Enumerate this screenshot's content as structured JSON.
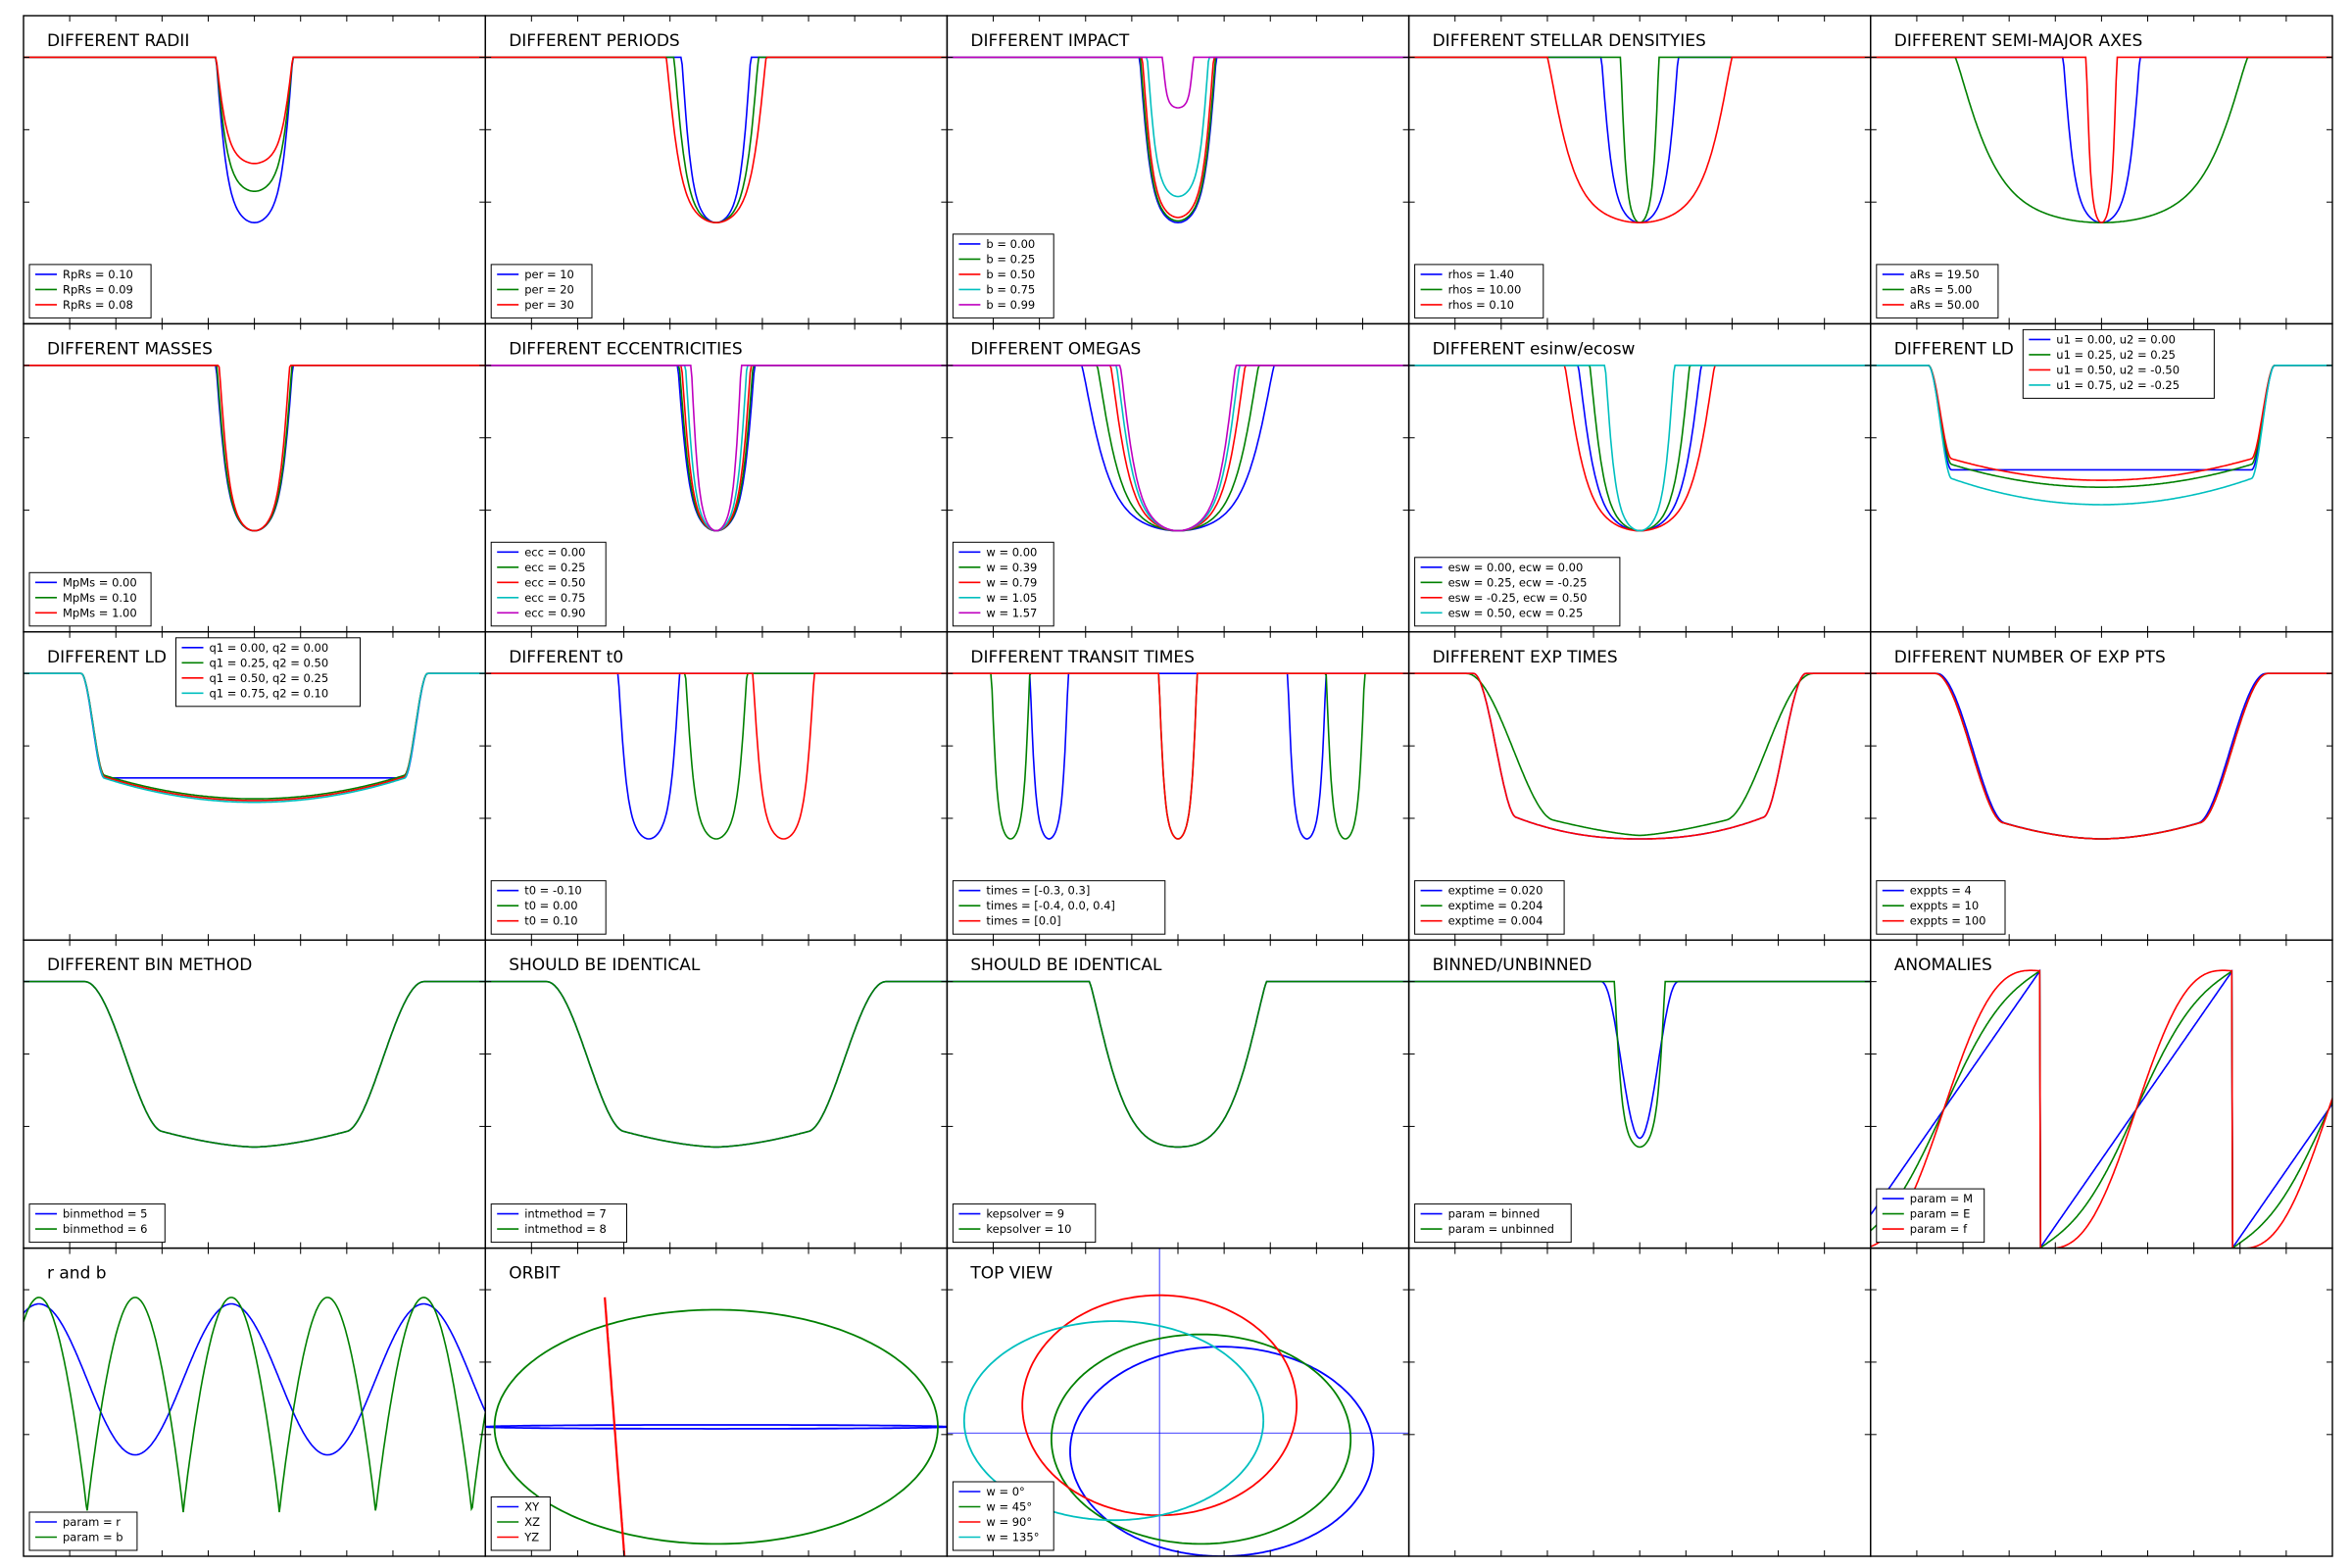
{
  "colors": {
    "b": "#0000ff",
    "g": "#008000",
    "r": "#ff0000",
    "c": "#00bfbf",
    "m": "#bf00bf"
  },
  "chart_data": [
    {
      "type": "line",
      "kind": "transit",
      "title": "DIFFERENT RADII",
      "legend_pos": "lower-left",
      "tr": [
        [
          0,
          0.2,
          6
        ]
      ],
      "series": [
        {
          "name": "RpRs = 0.10",
          "color": "b",
          "w": 1,
          "d": 0.95,
          "u": 0.7
        },
        {
          "name": "RpRs = 0.09",
          "color": "g",
          "w": 1,
          "d": 0.77,
          "u": 0.7
        },
        {
          "name": "RpRs = 0.08",
          "color": "r",
          "w": 1,
          "d": 0.61,
          "u": 0.7
        }
      ]
    },
    {
      "type": "line",
      "kind": "transit",
      "title": "DIFFERENT PERIODS",
      "legend_pos": "lower-left",
      "tr": [
        [
          0,
          0.2,
          6
        ]
      ],
      "series": [
        {
          "name": "per = 10",
          "color": "b",
          "w": 0.9,
          "d": 0.95,
          "u": 0.7
        },
        {
          "name": "per = 20",
          "color": "g",
          "w": 1.1,
          "d": 0.95,
          "u": 0.7
        },
        {
          "name": "per = 30",
          "color": "r",
          "w": 1.3,
          "d": 0.95,
          "u": 0.7
        }
      ]
    },
    {
      "type": "line",
      "kind": "transit",
      "title": "DIFFERENT IMPACT",
      "legend_pos": "lower-left",
      "tr": [
        [
          0,
          0.2,
          6
        ]
      ],
      "series": [
        {
          "name": "b = 0.00",
          "color": "b",
          "w": 1,
          "d": 0.95,
          "u": 0.7
        },
        {
          "name": "b = 0.25",
          "color": "g",
          "w": 0.98,
          "d": 0.94,
          "u": 0.7
        },
        {
          "name": "b = 0.50",
          "color": "r",
          "w": 0.93,
          "d": 0.92,
          "u": 0.7
        },
        {
          "name": "b = 0.75",
          "color": "c",
          "w": 0.8,
          "d": 0.8,
          "u": 0.7
        },
        {
          "name": "b = 0.99",
          "color": "m",
          "w": 0.4,
          "d": 0.29,
          "u": 0.5
        }
      ]
    },
    {
      "type": "line",
      "kind": "transit",
      "title": "DIFFERENT STELLAR DENSITYIES",
      "legend_pos": "lower-left",
      "tr": [
        [
          0,
          0.2,
          6
        ]
      ],
      "series": [
        {
          "name": "rhos = 1.40",
          "color": "b",
          "w": 1,
          "d": 0.95,
          "u": 0.7
        },
        {
          "name": "rhos = 10.00",
          "color": "g",
          "w": 0.5,
          "d": 0.95,
          "u": 0.7
        },
        {
          "name": "rhos = 0.10",
          "color": "r",
          "w": 2.4,
          "d": 0.95,
          "u": 0.7
        }
      ]
    },
    {
      "type": "line",
      "kind": "transit",
      "title": "DIFFERENT SEMI-MAJOR AXES",
      "legend_pos": "lower-left",
      "tr": [
        [
          0,
          0.2,
          6
        ]
      ],
      "series": [
        {
          "name": "aRs = 19.50",
          "color": "b",
          "w": 1,
          "d": 0.95,
          "u": 0.7
        },
        {
          "name": "aRs = 5.00",
          "color": "g",
          "w": 3.8,
          "d": 0.95,
          "u": 0.7
        },
        {
          "name": "aRs = 50.00",
          "color": "r",
          "w": 0.4,
          "d": 0.95,
          "u": 0.7
        }
      ]
    },
    {
      "type": "line",
      "kind": "transit",
      "title": "DIFFERENT MASSES",
      "legend_pos": "lower-left",
      "tr": [
        [
          0,
          0.2,
          6
        ]
      ],
      "series": [
        {
          "name": "MpMs = 0.00",
          "color": "b",
          "w": 1,
          "d": 0.95,
          "u": 0.7
        },
        {
          "name": "MpMs = 0.10",
          "color": "g",
          "w": 0.98,
          "d": 0.95,
          "u": 0.7
        },
        {
          "name": "MpMs = 1.00",
          "color": "r",
          "w": 0.92,
          "d": 0.95,
          "u": 0.7
        }
      ]
    },
    {
      "type": "line",
      "kind": "transit",
      "title": "DIFFERENT ECCENTRICITIES",
      "legend_pos": "lower-left",
      "tr": [
        [
          0,
          0.2,
          6
        ]
      ],
      "series": [
        {
          "name": "ecc = 0.00",
          "color": "b",
          "w": 1,
          "d": 0.95,
          "u": 0.7
        },
        {
          "name": "ecc = 0.25",
          "color": "g",
          "w": 0.96,
          "d": 0.95,
          "u": 0.7
        },
        {
          "name": "ecc = 0.50",
          "color": "r",
          "w": 0.9,
          "d": 0.95,
          "u": 0.7
        },
        {
          "name": "ecc = 0.75",
          "color": "c",
          "w": 0.8,
          "d": 0.95,
          "u": 0.7
        },
        {
          "name": "ecc = 0.90",
          "color": "m",
          "w": 0.65,
          "d": 0.95,
          "u": 0.7
        }
      ]
    },
    {
      "type": "line",
      "kind": "transit",
      "title": "DIFFERENT OMEGAS",
      "legend_pos": "lower-left",
      "tr": [
        [
          0,
          0.2,
          6
        ]
      ],
      "series": [
        {
          "name": "w = 0.00",
          "color": "b",
          "w": 2.5,
          "d": 0.95,
          "u": 0.7
        },
        {
          "name": "w = 0.39",
          "color": "g",
          "w": 2.1,
          "d": 0.95,
          "u": 0.7
        },
        {
          "name": "w = 0.79",
          "color": "r",
          "w": 1.75,
          "d": 0.95,
          "u": 0.7
        },
        {
          "name": "w = 1.05",
          "color": "c",
          "w": 1.6,
          "d": 0.95,
          "u": 0.7
        },
        {
          "name": "w = 1.57",
          "color": "m",
          "w": 1.5,
          "d": 0.95,
          "u": 0.7
        }
      ]
    },
    {
      "type": "line",
      "kind": "transit",
      "title": "DIFFERENT esinw/ecosw",
      "legend_pos": "lower-left",
      "tr": [
        [
          0,
          0.2,
          6
        ]
      ],
      "series": [
        {
          "name": "esw = 0.00, ecw = 0.00",
          "color": "b",
          "w": 1.6,
          "d": 0.95,
          "u": 0.7
        },
        {
          "name": "esw = 0.25, ecw = -0.25",
          "color": "g",
          "w": 1.3,
          "d": 0.95,
          "u": 0.7
        },
        {
          "name": "esw = -0.25, ecw = 0.50",
          "color": "r",
          "w": 1.95,
          "d": 0.95,
          "u": 0.7
        },
        {
          "name": "esw = 0.50, ecw = 0.25",
          "color": "c",
          "w": 0.9,
          "d": 0.95,
          "u": 0.7
        }
      ]
    },
    {
      "type": "line",
      "kind": "ld",
      "title": "DIFFERENT LD",
      "legend_pos": "top-right",
      "series": [
        {
          "name": "u1 = 0.00, u2 = 0.00",
          "color": "b",
          "ld": 0,
          "bottom": 0.6
        },
        {
          "name": "u1 = 0.25, u2 = 0.25",
          "color": "g",
          "ld": 1,
          "bottom": 0.7
        },
        {
          "name": "u1 = 0.50, u2 = -0.50",
          "color": "r",
          "ld": 1,
          "bottom": 0.66
        },
        {
          "name": "u1 = 0.75, u2 = -0.25",
          "color": "c",
          "ld": 1,
          "bottom": 0.8
        }
      ]
    },
    {
      "type": "line",
      "kind": "ld",
      "title": "DIFFERENT LD",
      "legend_pos": "top-center",
      "series": [
        {
          "name": "q1 = 0.00, q2 = 0.00",
          "color": "b",
          "ld": 0,
          "bottom": 0.6
        },
        {
          "name": "q1 = 0.25, q2 = 0.50",
          "color": "g",
          "ld": 1,
          "bottom": 0.72
        },
        {
          "name": "q1 = 0.50, q2 = 0.25",
          "color": "r",
          "ld": 1,
          "bottom": 0.73
        },
        {
          "name": "q1 = 0.75, q2 = 0.10",
          "color": "c",
          "ld": 1,
          "bottom": 0.74
        }
      ]
    },
    {
      "type": "line",
      "kind": "transit",
      "title": "DIFFERENT t0",
      "legend_pos": "lower-left",
      "series": [
        {
          "name": "t0 = -0.10",
          "color": "b",
          "w": 1,
          "d": 0.95,
          "u": 0.7,
          "tr": [
            [
              -0.35,
              0.16,
              6
            ]
          ]
        },
        {
          "name": "t0 = 0.00",
          "color": "g",
          "w": 1,
          "d": 0.95,
          "u": 0.7,
          "tr": [
            [
              0,
              0.16,
              6
            ]
          ]
        },
        {
          "name": "t0 = 0.10",
          "color": "r",
          "w": 1,
          "d": 0.95,
          "u": 0.7,
          "tr": [
            [
              0.35,
              0.16,
              6
            ]
          ]
        }
      ]
    },
    {
      "type": "line",
      "kind": "transit",
      "title": "DIFFERENT TRANSIT TIMES",
      "legend_pos": "lower-left",
      "series": [
        {
          "name": "times = [-0.3, 0.3]",
          "color": "b",
          "w": 1,
          "d": 0.95,
          "u": 0.7,
          "tr": [
            [
              -0.67,
              0.1,
              6
            ],
            [
              0.67,
              0.1,
              6
            ]
          ]
        },
        {
          "name": "times = [-0.4, 0.0, 0.4]",
          "color": "g",
          "w": 1,
          "d": 0.95,
          "u": 0.7,
          "tr": [
            [
              -0.87,
              0.1,
              6
            ],
            [
              0,
              0.1,
              6
            ],
            [
              0.87,
              0.1,
              6
            ]
          ]
        },
        {
          "name": "times = [0.0]",
          "color": "r",
          "w": 1,
          "d": 0.95,
          "u": 0.7,
          "tr": [
            [
              0,
              0.1,
              6
            ]
          ]
        }
      ]
    },
    {
      "type": "line",
      "kind": "ld",
      "title": "DIFFERENT EXP TIMES",
      "legend_pos": "lower-left",
      "series": [
        {
          "name": "exptime = 0.020",
          "color": "b",
          "ld": 1,
          "bottom": 0.95,
          "w": 0.96,
          "ing": 0.22,
          "pw": 2.2
        },
        {
          "name": "exptime = 0.204",
          "color": "g",
          "ld": 1,
          "bottom": 0.93,
          "w": 1.0,
          "ing": 0.45,
          "pw": 1.4
        },
        {
          "name": "exptime = 0.004",
          "color": "r",
          "ld": 1,
          "bottom": 0.95,
          "w": 0.96,
          "ing": 0.22,
          "pw": 2.2
        }
      ]
    },
    {
      "type": "line",
      "kind": "ld",
      "title": "DIFFERENT NUMBER OF EXP PTS",
      "legend_pos": "lower-left",
      "series": [
        {
          "name": "exppts = 4",
          "color": "b",
          "ld": 1,
          "bottom": 0.95,
          "w": 0.95,
          "ing": 0.35,
          "pw": 1.8
        },
        {
          "name": "exppts = 10",
          "color": "g",
          "ld": 1,
          "bottom": 0.95,
          "w": 0.96,
          "ing": 0.35,
          "pw": 1.8
        },
        {
          "name": "exppts = 100",
          "color": "r",
          "ld": 1,
          "bottom": 0.95,
          "w": 0.96,
          "ing": 0.35,
          "pw": 1.8
        }
      ]
    },
    {
      "type": "line",
      "kind": "ld",
      "title": "DIFFERENT BIN METHOD",
      "legend_pos": "lower-left",
      "series": [
        {
          "name": "binmethod = 5",
          "color": "b",
          "ld": 1,
          "bottom": 0.95,
          "w": 0.98,
          "ing": 0.4,
          "pw": 1.6
        },
        {
          "name": "binmethod = 6",
          "color": "g",
          "ld": 1,
          "bottom": 0.95,
          "w": 0.98,
          "ing": 0.4,
          "pw": 1.6
        }
      ]
    },
    {
      "type": "line",
      "kind": "ld",
      "title": "SHOULD BE IDENTICAL",
      "legend_pos": "lower-left",
      "series": [
        {
          "name": "intmethod = 7",
          "color": "b",
          "ld": 1,
          "bottom": 0.95,
          "w": 0.98,
          "ing": 0.4,
          "pw": 1.6
        },
        {
          "name": "intmethod = 8",
          "color": "g",
          "ld": 1,
          "bottom": 0.95,
          "w": 0.98,
          "ing": 0.4,
          "pw": 1.6
        }
      ]
    },
    {
      "type": "line",
      "kind": "transit",
      "title": "SHOULD BE IDENTICAL",
      "legend_pos": "lower-left",
      "tr": [
        [
          0,
          0.46,
          4
        ]
      ],
      "series": [
        {
          "name": "kepsolver = 9",
          "color": "b",
          "w": 1,
          "d": 0.95,
          "u": 0.7
        },
        {
          "name": "kepsolver = 10",
          "color": "g",
          "w": 1,
          "d": 0.95,
          "u": 0.7
        }
      ]
    },
    {
      "type": "line",
      "kind": "transit",
      "title": "BINNED/UNBINNED",
      "legend_pos": "lower-left",
      "tr": [
        [
          0,
          0.2,
          6
        ]
      ],
      "series": [
        {
          "name": "param = binned",
          "color": "b",
          "w": 1,
          "d": 0.9,
          "u": 0.2,
          "soft": 1
        },
        {
          "name": "param = unbinned",
          "color": "g",
          "w": 0.66,
          "d": 0.95,
          "u": 0.7
        }
      ]
    },
    {
      "type": "line",
      "kind": "anomaly",
      "title": "ANOMALIES",
      "legend_pos": "lower-left",
      "series": [
        {
          "name": "param = M",
          "color": "b",
          "e": 0
        },
        {
          "name": "param = E",
          "color": "g",
          "e": 0.25
        },
        {
          "name": "param = f",
          "color": "r",
          "e": 0.5
        }
      ]
    },
    {
      "type": "line",
      "kind": "rb",
      "title": "r and b",
      "legend_pos": "lower-left",
      "series": [
        {
          "name": "param = r",
          "color": "b"
        },
        {
          "name": "param = b",
          "color": "g"
        }
      ]
    },
    {
      "type": "line",
      "kind": "orbit",
      "title": "ORBIT",
      "legend_pos": "lower-left",
      "series": [
        {
          "name": "XY",
          "color": "b"
        },
        {
          "name": "XZ",
          "color": "g"
        },
        {
          "name": "YZ",
          "color": "r"
        }
      ]
    },
    {
      "type": "line",
      "kind": "topview",
      "title": "TOP VIEW",
      "legend_pos": "lower-left",
      "series": [
        {
          "name": "w = 0°",
          "color": "b",
          "cx": 0.3,
          "cy": 0.0,
          "rx": 0.73,
          "ry": 0.4
        },
        {
          "name": "w = 45°",
          "color": "g",
          "cx": 0.2,
          "cy": 0.08,
          "rx": 0.72,
          "ry": 0.4
        },
        {
          "name": "w = 90°",
          "color": "r",
          "cx": 0.0,
          "cy": 0.3,
          "rx": 0.66,
          "ry": 0.42
        },
        {
          "name": "w = 135°",
          "color": "c",
          "cx": -0.22,
          "cy": 0.2,
          "rx": 0.72,
          "ry": 0.38
        }
      ]
    },
    {
      "type": "line",
      "kind": "empty",
      "title": "",
      "series": []
    },
    {
      "type": "line",
      "kind": "empty",
      "title": "",
      "series": []
    }
  ]
}
